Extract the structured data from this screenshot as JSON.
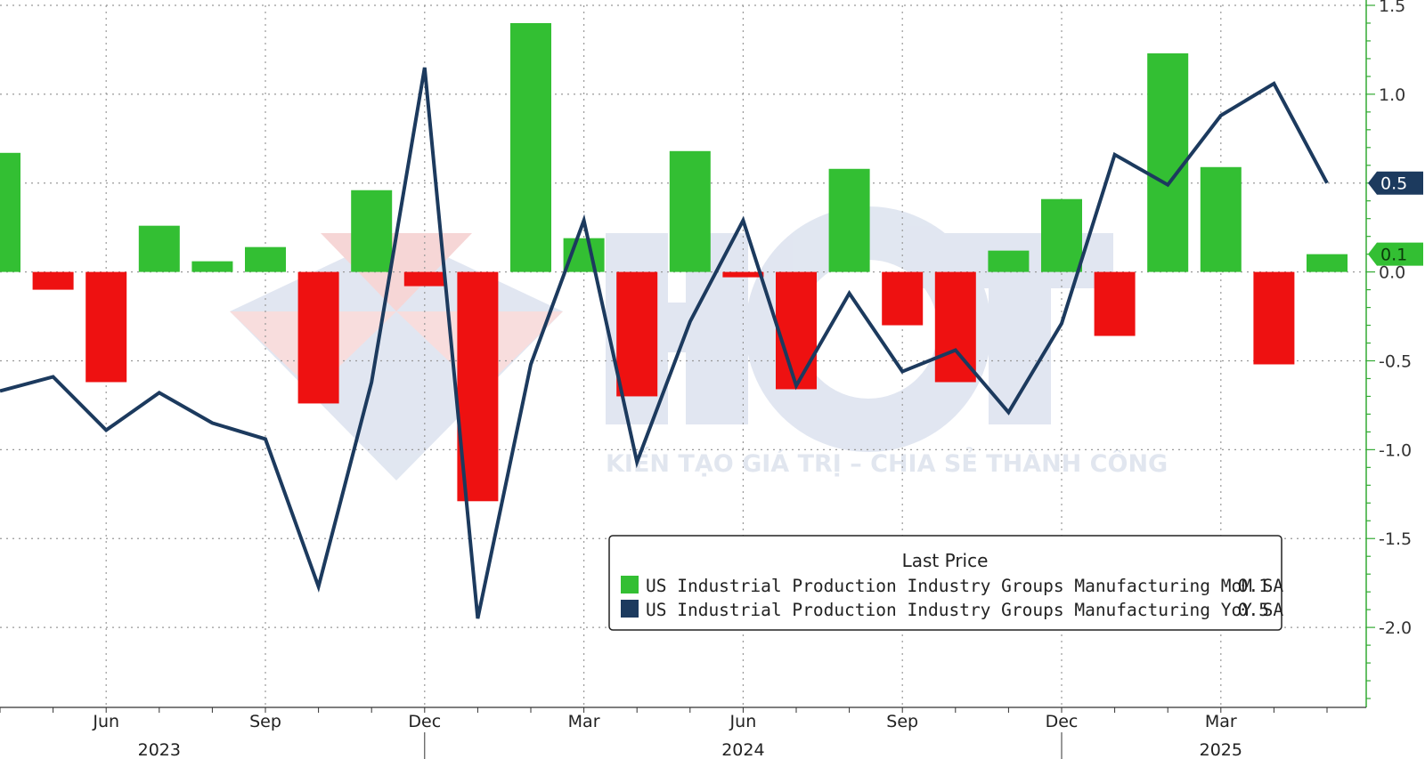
{
  "colors": {
    "positive_bar": "#33bf33",
    "negative_bar": "#ee1111",
    "line": "#1c3a5e",
    "axis": "#33aa33",
    "grid": "#999999"
  },
  "watermark": {
    "tagline": "KIẾN TẠO GIÁ TRỊ – CHIA SẺ THÀNH CÔNG"
  },
  "chart_data": {
    "type": "bar",
    "x": [
      "2023-04",
      "2023-05",
      "2023-06",
      "2023-07",
      "2023-08",
      "2023-09",
      "2023-10",
      "2023-11",
      "2023-12",
      "2024-01",
      "2024-02",
      "2024-03",
      "2024-04",
      "2024-05",
      "2024-06",
      "2024-07",
      "2024-08",
      "2024-09",
      "2024-10",
      "2024-11",
      "2024-12",
      "2025-01",
      "2025-02",
      "2025-03",
      "2025-04",
      "2025-05"
    ],
    "series": [
      {
        "name": "US Industrial Production Industry Groups Manufacturing MoM SA",
        "type": "bar",
        "last_price": "0.1",
        "values": [
          0.67,
          -0.1,
          -0.62,
          0.26,
          0.06,
          0.14,
          -0.74,
          0.46,
          -0.08,
          -1.29,
          1.4,
          0.19,
          -0.7,
          0.68,
          -0.03,
          -0.66,
          0.58,
          -0.3,
          -0.62,
          0.12,
          0.41,
          -0.36,
          1.23,
          0.59,
          -0.52,
          0.1
        ]
      },
      {
        "name": "US Industrial Production Industry Groups Manufacturing YoY SA",
        "type": "line",
        "last_price": "0.5",
        "values": [
          -0.67,
          -0.59,
          -0.89,
          -0.68,
          -0.85,
          -0.94,
          -1.77,
          -0.62,
          1.15,
          -1.95,
          -0.52,
          0.29,
          -1.07,
          -0.28,
          0.29,
          -0.64,
          -0.12,
          -0.56,
          -0.44,
          -0.79,
          -0.29,
          0.66,
          0.49,
          0.88,
          1.06,
          0.5
        ]
      }
    ],
    "ylim": [
      -2.45,
      1.5
    ],
    "y_ticks": [
      1.5,
      1.0,
      0.5,
      0.0,
      -0.5,
      -1.0,
      -1.5,
      -2.0
    ],
    "y_tick_labels": [
      "1.5",
      "1.0",
      "0.5",
      "0.0",
      "-0.5",
      "-1.0",
      "-1.5",
      "-2.0"
    ],
    "x_tick_labels": [
      "Jun",
      "Sep",
      "Dec",
      "Mar",
      "Jun",
      "Sep",
      "Dec",
      "Mar"
    ],
    "x_tick_months": [
      "2023-06",
      "2023-09",
      "2023-12",
      "2024-03",
      "2024-06",
      "2024-09",
      "2024-12",
      "2025-03"
    ],
    "year_labels": [
      "2023",
      "2024",
      "2025"
    ],
    "year_label_months": [
      "2023-07",
      "2024-06",
      "2025-03"
    ],
    "last_value_tags": [
      {
        "label": "0.5",
        "value": 0.5,
        "color": "#1c3a5e",
        "text_color": "#ffffff"
      },
      {
        "label": "0.1",
        "value": 0.1,
        "color": "#33bf33",
        "text_color": "#0a3a0a"
      }
    ],
    "legend": {
      "title": "Last Price",
      "position": "bottom-center",
      "entries": [
        {
          "label": "US Industrial Production Industry Groups Manufacturing MoM SA",
          "value": "0.1",
          "color": "#33bf33"
        },
        {
          "label": "US Industrial Production Industry Groups Manufacturing YoY SA",
          "value": "0.5",
          "color": "#1c3a5e"
        }
      ]
    },
    "grid": true
  }
}
